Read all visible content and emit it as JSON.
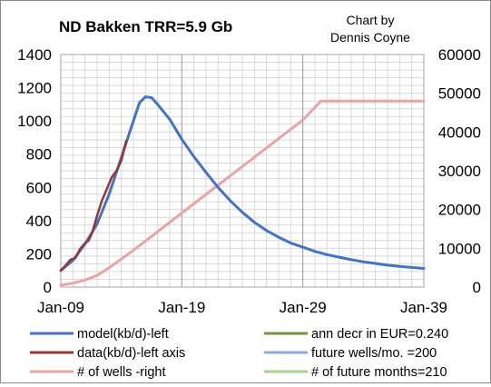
{
  "chart_data": {
    "type": "line",
    "title": "ND Bakken TRR=5.9 Gb",
    "credit_line1": "Chart by",
    "credit_line2": "Dennis Coyne",
    "x_axis": {
      "ticks": [
        "Jan-09",
        "Jan-19",
        "Jan-29",
        "Jan-39"
      ],
      "range": [
        2009,
        2039
      ]
    },
    "y_left": {
      "ticks": [
        "0",
        "200",
        "400",
        "600",
        "800",
        "1000",
        "1200",
        "1400"
      ],
      "range": [
        0,
        1400
      ]
    },
    "y_right": {
      "ticks": [
        "0",
        "10000",
        "20000",
        "30000",
        "40000",
        "50000",
        "60000"
      ],
      "range": [
        0,
        60000
      ]
    },
    "grid": true,
    "legend_position": "bottom",
    "legend": [
      {
        "label": "model(kb/d)-left",
        "color": "#4472c4"
      },
      {
        "label": "ann decr in EUR=0.240",
        "color": "#77933c"
      },
      {
        "label": "data(kb/d)-left axis",
        "color": "#953735"
      },
      {
        "label": "future wells/mo.  =200",
        "color": "#8eaadb"
      },
      {
        "label": "# of wells -right",
        "color": "#e6a6a6"
      },
      {
        "label": "# of future months=210",
        "color": "#a9d08e"
      }
    ],
    "series": [
      {
        "name": "model(kb/d)-left",
        "axis": "left",
        "color": "#4472c4",
        "x": [
          2009,
          2010,
          2011,
          2012,
          2013,
          2014,
          2015,
          2015.5,
          2016,
          2016.5,
          2017,
          2018,
          2019,
          2020,
          2021,
          2022,
          2023,
          2024,
          2025,
          2026,
          2027,
          2028,
          2029,
          2030,
          2031,
          2032,
          2033,
          2034,
          2035,
          2036,
          2037,
          2038,
          2039
        ],
        "values": [
          100,
          160,
          260,
          380,
          560,
          780,
          1000,
          1110,
          1145,
          1140,
          1100,
          1010,
          890,
          785,
          690,
          600,
          520,
          450,
          390,
          340,
          300,
          265,
          240,
          215,
          195,
          180,
          165,
          152,
          142,
          132,
          124,
          118,
          112
        ]
      },
      {
        "name": "data(kb/d)-left axis",
        "axis": "left",
        "color": "#953735",
        "x": [
          2009,
          2009.4,
          2009.8,
          2010.2,
          2010.6,
          2011,
          2011.3,
          2011.6,
          2012,
          2012.4,
          2012.8,
          2013.2,
          2013.6,
          2014,
          2014.4
        ],
        "values": [
          100,
          130,
          165,
          175,
          230,
          265,
          280,
          330,
          430,
          520,
          590,
          660,
          700,
          760,
          880
        ]
      },
      {
        "name": "# of wells -right",
        "axis": "right",
        "color": "#e6a6a6",
        "x": [
          2009,
          2010,
          2011,
          2012,
          2013,
          2015,
          2017,
          2019,
          2021,
          2023,
          2025,
          2027,
          2029,
          2030.5,
          2035,
          2039
        ],
        "values": [
          500,
          1000,
          1800,
          3000,
          5000,
          9500,
          14300,
          19100,
          23900,
          28700,
          33500,
          38300,
          43100,
          48000,
          48000,
          48000
        ]
      }
    ]
  }
}
